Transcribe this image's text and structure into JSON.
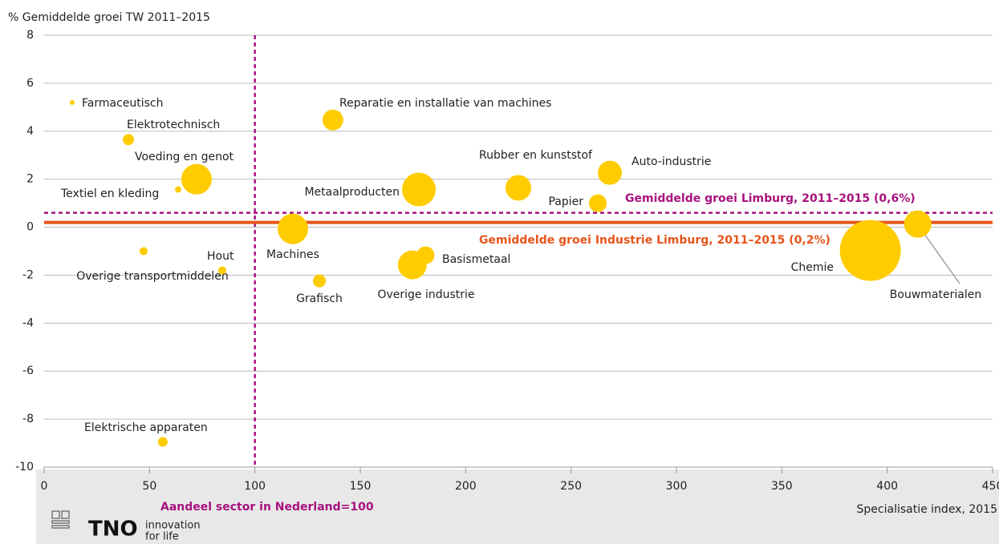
{
  "chart_data": {
    "type": "scatter",
    "y_label": "% Gemiddelde groei TW 2011–2015",
    "x_label": "Specialisatie index, 2015",
    "xlim": [
      0,
      450
    ],
    "xticks": [
      0,
      50,
      100,
      150,
      200,
      250,
      300,
      350,
      400,
      450
    ],
    "ylim": [
      -10,
      8
    ],
    "yticks": [
      -10,
      -8,
      -6,
      -4,
      -2,
      0,
      2,
      4,
      6,
      8
    ],
    "grid": true,
    "color": "#ffcc00",
    "series": [
      {
        "labels": [
          "Farmaceutisch",
          "Elektrotechnisch",
          "Voeding en genot",
          "Textiel en kleding",
          "Overige transportmiddelen",
          "Hout",
          "Elektrische apparaten",
          "Reparatie en installatie van machines",
          "Machines",
          "Grafisch",
          "Metaalproducten",
          "Overige industrie",
          "Basismetaal",
          "Rubber en kunststof",
          "Papier",
          "Auto-industrie",
          "Chemie",
          "Bouwmaterialen"
        ],
        "x": [
          13.3,
          40,
          72.3,
          63.6,
          47.2,
          84.5,
          56.3,
          137,
          118,
          130.6,
          177.8,
          174.7,
          181,
          225,
          262.7,
          268.4,
          392,
          414.5
        ],
        "values": [
          5.2,
          3.65,
          2.0,
          1.57,
          -1.0,
          -1.8,
          -8.95,
          4.47,
          -0.07,
          -2.24,
          1.57,
          -1.57,
          -1.17,
          1.64,
          1.0,
          2.27,
          -0.97,
          0.13
        ],
        "sizes": [
          9,
          49,
          361,
          16,
          25,
          25,
          36,
          169,
          361,
          64,
          441,
          324,
          121,
          256,
          121,
          225,
          1444,
          289
        ]
      }
    ],
    "reference_lines": [
      {
        "axis": "x",
        "value": 100,
        "label": "Aandeel sector in Nederland=100",
        "color": "#a8127e"
      },
      {
        "axis": "y",
        "value": 0.6,
        "label": "Gemiddelde groei Limburg, 2011–2015 (0,6%)",
        "color": "#a8127e"
      },
      {
        "axis": "y",
        "value": 0.2,
        "label": "Gemiddelde groei Industrie Limburg, 2011–2015 (0,2%)",
        "color": "#e8541b"
      }
    ],
    "logo": {
      "name": "TNO",
      "tagline_1": "innovation",
      "tagline_2": "for life"
    }
  }
}
